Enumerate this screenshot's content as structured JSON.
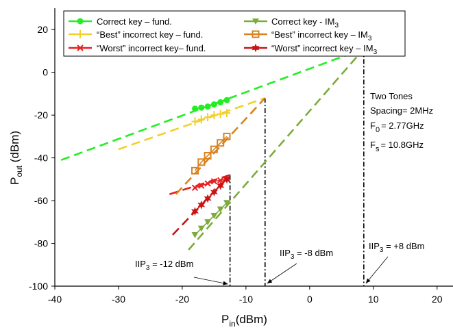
{
  "chart_data": {
    "type": "line",
    "xlabel": "P_in (dBm)",
    "xlabel_main": "P",
    "xlabel_sub": "in",
    "xlabel_rest": "(dBm)",
    "ylabel_main": "P",
    "ylabel_sub": "out",
    "ylabel_rest": " (dBm)",
    "xlim": [
      -40,
      22.5
    ],
    "ylim": [
      -100,
      30
    ],
    "xticks": [
      -40,
      -30,
      -20,
      -10,
      0,
      10,
      20
    ],
    "yticks": [
      -100,
      -80,
      -60,
      -40,
      -20,
      0,
      20
    ],
    "grid": false,
    "legend_position": "top",
    "series": [
      {
        "name": "Correct key – fund.",
        "color": "#22ee22",
        "marker": "circle",
        "x": [
          -18,
          -17,
          -16,
          -15,
          -14,
          -13
        ],
        "y": [
          -17,
          -16.5,
          -16,
          -15,
          -14,
          -13
        ],
        "trend": {
          "x": [
            -39,
            8.5
          ],
          "y": [
            -41,
            11
          ]
        }
      },
      {
        "name": "“Best” incorrect key – fund.",
        "color": "#f2cf2a",
        "marker": "plus",
        "x": [
          -18,
          -17,
          -16,
          -15,
          -14,
          -13
        ],
        "y": [
          -23,
          -22,
          -21,
          -20,
          -19.5,
          -19
        ],
        "trend": {
          "x": [
            -30,
            -7
          ],
          "y": [
            -36,
            -12
          ]
        }
      },
      {
        "name": "“Worst” incorrect key– fund.",
        "color": "#e81e1e",
        "marker": "x",
        "x": [
          -18,
          -17,
          -16,
          -15,
          -14,
          -13
        ],
        "y": [
          -54,
          -53,
          -52,
          -51,
          -50.5,
          -50
        ],
        "trend": {
          "x": [
            -22,
            -12.5
          ],
          "y": [
            -57,
            -48
          ]
        }
      },
      {
        "name": "Correct key - IM",
        "name_sub": "3",
        "color": "#7cab3c",
        "marker": "triangle-down",
        "x": [
          -18,
          -17,
          -16,
          -15,
          -14,
          -13
        ],
        "y": [
          -76,
          -73,
          -70,
          -67,
          -64,
          -61
        ],
        "trend": {
          "x": [
            -19,
            8.5
          ],
          "y": [
            -83,
            11
          ]
        }
      },
      {
        "name": "“Best” incorrect key – IM",
        "name_sub": "3",
        "color": "#d9821f",
        "marker": "square",
        "x": [
          -18,
          -17,
          -16,
          -15,
          -14,
          -13
        ],
        "y": [
          -46,
          -42,
          -39,
          -36,
          -33,
          -30
        ],
        "trend": {
          "x": [
            -21,
            -7
          ],
          "y": [
            -57,
            -12
          ]
        }
      },
      {
        "name": "“Worst” incorrect key –  IM",
        "name_sub": "3",
        "color": "#c81414",
        "marker": "star",
        "x": [
          -18,
          -17,
          -16,
          -15,
          -14,
          -13
        ],
        "y": [
          -65,
          -62,
          -59,
          -56,
          -53,
          -50
        ],
        "trend": {
          "x": [
            -21.5,
            -12.5
          ],
          "y": [
            -76,
            -48
          ]
        }
      }
    ],
    "vlines": [
      {
        "x": -12.5,
        "y_top": -48
      },
      {
        "x": -7,
        "y_top": -12
      },
      {
        "x": 8.5,
        "y_top": 11
      }
    ],
    "annotations": [
      {
        "pre": "IIP",
        "sub": "3",
        "post": " = -12 dBm",
        "point_to_x": -12.5
      },
      {
        "pre": "IIP",
        "sub": "3",
        "post": " = -8 dBm",
        "point_to_x": -7
      },
      {
        "pre": "IIP",
        "sub": "3",
        "post": " = +8 dBm",
        "point_to_x": 8.5
      }
    ],
    "info_box": {
      "line1": "Two Tones",
      "line2": "Spacing= 2MHz",
      "f0_main": "F",
      "f0_sub": "0",
      "f0_rest": "= 2.77GHz",
      "fs_main": "F",
      "fs_sub": "s",
      "fs_rest": "= 10.8GHz"
    }
  }
}
